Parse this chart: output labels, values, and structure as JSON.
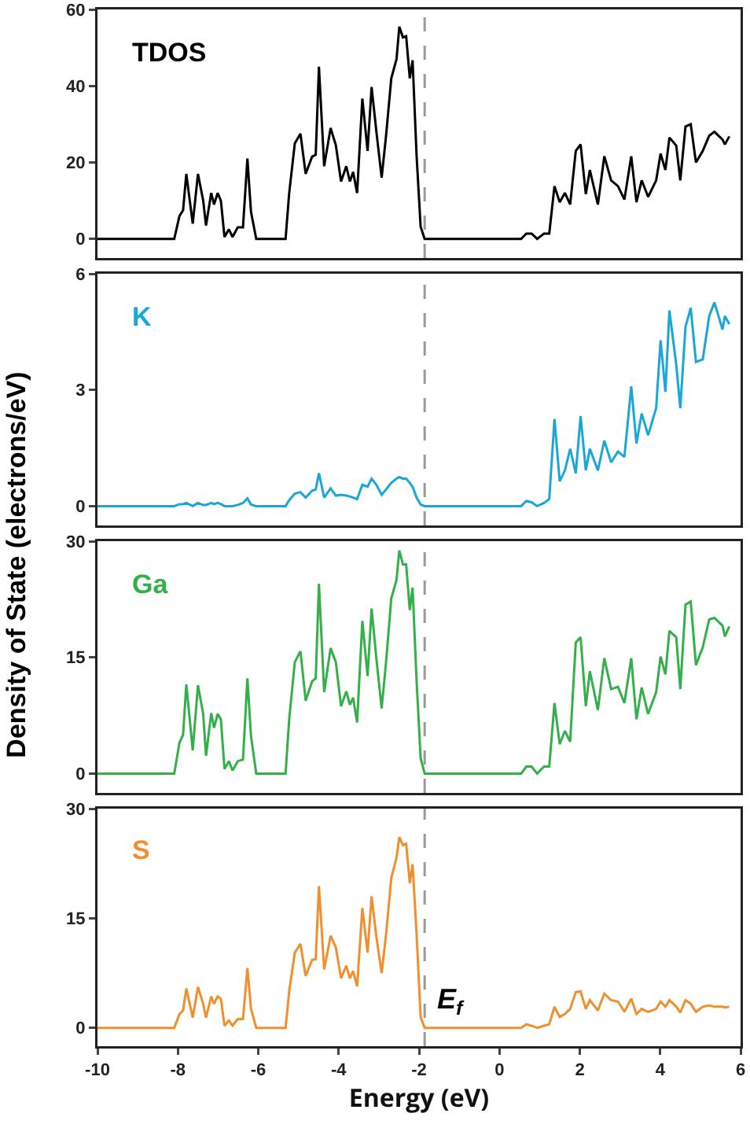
{
  "chart_data": [
    {
      "type": "line",
      "ylabel": "Density of State (electrons/eV)",
      "tick_labels": "y",
      "grid": false,
      "legend": false,
      "x": [
        -10,
        -8.09,
        -7.96,
        -7.87,
        -7.79,
        -7.63,
        -7.5,
        -7.37,
        -7.3,
        -7.17,
        -7.1,
        -7.01,
        -6.93,
        -6.84,
        -6.73,
        -6.64,
        -6.51,
        -6.38,
        -6.27,
        -6.18,
        -6.05,
        -5.32,
        -5.23,
        -5.09,
        -4.95,
        -4.82,
        -4.66,
        -4.57,
        -4.49,
        -4.36,
        -4.2,
        -4.07,
        -3.94,
        -3.81,
        -3.72,
        -3.64,
        -3.54,
        -3.41,
        -3.28,
        -3.18,
        -3.06,
        -2.93,
        -2.82,
        -2.69,
        -2.56,
        -2.49,
        -2.4,
        -2.32,
        -2.23,
        -2.16,
        -2.06,
        -1.96,
        -1.86,
        0.54,
        0.67,
        0.8,
        0.94,
        1.11,
        1.24,
        1.37,
        1.5,
        1.63,
        1.76,
        1.9,
        2.02,
        2.15,
        2.25,
        2.45,
        2.61,
        2.78,
        2.95,
        3.11,
        3.28,
        3.41,
        3.54,
        3.7,
        3.9,
        4.01,
        4.13,
        4.23,
        4.4,
        4.5,
        4.63,
        4.76,
        4.89,
        5.06,
        5.22,
        5.35,
        5.55,
        5.61,
        5.72
      ],
      "series": [
        {
          "name": "TDOS",
          "color": "#000000",
          "values": [
            0,
            0,
            6,
            7.5,
            17,
            4,
            17,
            10,
            3.5,
            12,
            9,
            12,
            10,
            0.5,
            2.5,
            0.5,
            3,
            3,
            21,
            7,
            0,
            0,
            12,
            25,
            27.5,
            17,
            21.5,
            22,
            45,
            19,
            29,
            24.5,
            15,
            19,
            15,
            17.5,
            12,
            36.7,
            23,
            39.7,
            28,
            16,
            27,
            42,
            47,
            55.5,
            52.7,
            53,
            42,
            46.7,
            21.6,
            3.2,
            0,
            0,
            1.4,
            1.4,
            0,
            1.4,
            1.4,
            13.8,
            9.6,
            12,
            9,
            23,
            24.7,
            11.7,
            18,
            9,
            21.6,
            15.3,
            13.8,
            10.3,
            21.6,
            9.6,
            15.3,
            11,
            15.3,
            22.3,
            18,
            26.5,
            24.4,
            15.3,
            29.4,
            30,
            20,
            23,
            27,
            28,
            26,
            24.7,
            26.8
          ]
        }
      ],
      "xlim": [
        -10,
        6
      ],
      "ylim": [
        -5,
        60
      ],
      "yticks": [
        0,
        20,
        40,
        60
      ],
      "ref_lines": [
        {
          "axis": "x",
          "value": -1.86,
          "color": "#999999",
          "line_style": "dashed"
        }
      ]
    },
    {
      "type": "line",
      "tick_labels": "y",
      "grid": false,
      "legend": false,
      "x": [
        -10,
        -8.09,
        -7.96,
        -7.87,
        -7.79,
        -7.63,
        -7.5,
        -7.37,
        -7.3,
        -7.17,
        -7.1,
        -7.01,
        -6.93,
        -6.84,
        -6.73,
        -6.64,
        -6.51,
        -6.38,
        -6.27,
        -6.18,
        -6.05,
        -5.32,
        -5.23,
        -5.09,
        -4.95,
        -4.82,
        -4.66,
        -4.57,
        -4.49,
        -4.36,
        -4.2,
        -4.07,
        -3.94,
        -3.81,
        -3.72,
        -3.64,
        -3.54,
        -3.41,
        -3.28,
        -3.18,
        -3.06,
        -2.93,
        -2.82,
        -2.69,
        -2.56,
        -2.49,
        -2.4,
        -2.32,
        -2.23,
        -2.16,
        -2.06,
        -1.96,
        -1.86,
        0.54,
        0.67,
        0.8,
        0.94,
        1.11,
        1.24,
        1.37,
        1.5,
        1.63,
        1.76,
        1.9,
        2.02,
        2.15,
        2.25,
        2.45,
        2.61,
        2.78,
        2.95,
        3.11,
        3.28,
        3.41,
        3.54,
        3.7,
        3.9,
        4.01,
        4.13,
        4.23,
        4.4,
        4.5,
        4.63,
        4.76,
        4.89,
        5.06,
        5.22,
        5.35,
        5.55,
        5.61,
        5.72
      ],
      "series": [
        {
          "name": "K",
          "color": "#1aa7d8",
          "values": [
            0,
            0,
            0.05,
            0.05,
            0.08,
            0,
            0.08,
            0.03,
            0.03,
            0.08,
            0.05,
            0.08,
            0.05,
            0,
            0,
            0,
            0.03,
            0.08,
            0.2,
            0.04,
            0,
            0,
            0.15,
            0.32,
            0.36,
            0.22,
            0.4,
            0.43,
            0.85,
            0.22,
            0.46,
            0.27,
            0.29,
            0.27,
            0.25,
            0.22,
            0.18,
            0.55,
            0.5,
            0.71,
            0.55,
            0.29,
            0.43,
            0.6,
            0.71,
            0.75,
            0.71,
            0.71,
            0.6,
            0.5,
            0.22,
            0.04,
            0,
            0,
            0.13,
            0.1,
            0,
            0.08,
            0.18,
            2.25,
            0.64,
            0.92,
            1.48,
            0.85,
            2.32,
            0.92,
            1.48,
            0.92,
            1.69,
            1.13,
            1.41,
            1.27,
            3.09,
            1.62,
            2.39,
            1.83,
            2.53,
            4.28,
            2.95,
            5.05,
            3.65,
            2.53,
            4.63,
            5.12,
            3.72,
            3.79,
            4.91,
            5.26,
            4.56,
            4.91,
            4.7
          ]
        }
      ],
      "xlim": [
        -10,
        6
      ],
      "ylim": [
        -0.5,
        6
      ],
      "yticks": [
        0,
        3,
        6
      ],
      "ref_lines": [
        {
          "axis": "x",
          "value": -1.86,
          "color": "#999999",
          "line_style": "dashed"
        }
      ]
    },
    {
      "type": "line",
      "tick_labels": "y",
      "grid": false,
      "legend": false,
      "x": [
        -10,
        -8.09,
        -7.96,
        -7.87,
        -7.79,
        -7.63,
        -7.5,
        -7.37,
        -7.3,
        -7.17,
        -7.1,
        -7.01,
        -6.93,
        -6.84,
        -6.73,
        -6.64,
        -6.51,
        -6.38,
        -6.27,
        -6.18,
        -6.05,
        -5.32,
        -5.23,
        -5.09,
        -4.95,
        -4.82,
        -4.66,
        -4.57,
        -4.49,
        -4.36,
        -4.2,
        -4.07,
        -3.94,
        -3.81,
        -3.72,
        -3.64,
        -3.54,
        -3.41,
        -3.28,
        -3.18,
        -3.06,
        -2.93,
        -2.82,
        -2.69,
        -2.56,
        -2.49,
        -2.4,
        -2.32,
        -2.23,
        -2.16,
        -2.06,
        -1.96,
        -1.86,
        0.54,
        0.67,
        0.8,
        0.94,
        1.11,
        1.24,
        1.37,
        1.5,
        1.63,
        1.76,
        1.9,
        2.02,
        2.15,
        2.25,
        2.45,
        2.61,
        2.78,
        2.95,
        3.11,
        3.28,
        3.41,
        3.54,
        3.7,
        3.9,
        4.01,
        4.13,
        4.23,
        4.4,
        4.5,
        4.63,
        4.76,
        4.89,
        5.06,
        5.22,
        5.35,
        5.55,
        5.61,
        5.72
      ],
      "series": [
        {
          "name": "Ga",
          "color": "#33b04a",
          "values": [
            0,
            0,
            4,
            5,
            11.5,
            3,
            11.4,
            7.7,
            2.3,
            7.8,
            5.9,
            7.7,
            7,
            0.6,
            1.6,
            0.4,
            1.6,
            1.8,
            12.3,
            4.8,
            0,
            0,
            7,
            14.4,
            15.8,
            9.4,
            11.9,
            12.3,
            24.5,
            10.5,
            16.2,
            14.4,
            8.7,
            10.6,
            8.9,
            9.8,
            6.6,
            19.7,
            12.6,
            21.3,
            14.8,
            8.4,
            14.4,
            22.6,
            25,
            28.8,
            27,
            27,
            21.1,
            24,
            11.9,
            2,
            0,
            0,
            0.9,
            0.9,
            0,
            0.9,
            0.9,
            9.1,
            3.8,
            5.5,
            4.1,
            16.9,
            17.6,
            8.7,
            13.2,
            8.2,
            14.9,
            10.9,
            11.2,
            9.1,
            14.9,
            7,
            11.1,
            7.7,
            10.5,
            15.1,
            12.8,
            18.4,
            17.6,
            10.9,
            21.8,
            22.2,
            14,
            16.3,
            19.9,
            20.1,
            19.1,
            17.7,
            19
          ]
        }
      ],
      "xlim": [
        -10,
        6
      ],
      "ylim": [
        -2.5,
        30
      ],
      "yticks": [
        0,
        15,
        30
      ],
      "ref_lines": [
        {
          "axis": "x",
          "value": -1.86,
          "color": "#999999",
          "line_style": "dashed"
        }
      ]
    },
    {
      "type": "line",
      "xlabel": "Energy (eV)",
      "grid": false,
      "legend": false,
      "x": [
        -10,
        -8.09,
        -7.96,
        -7.87,
        -7.79,
        -7.63,
        -7.5,
        -7.37,
        -7.3,
        -7.17,
        -7.1,
        -7.01,
        -6.93,
        -6.84,
        -6.73,
        -6.64,
        -6.51,
        -6.38,
        -6.27,
        -6.18,
        -6.05,
        -5.32,
        -5.23,
        -5.09,
        -4.95,
        -4.82,
        -4.66,
        -4.57,
        -4.49,
        -4.36,
        -4.2,
        -4.07,
        -3.94,
        -3.81,
        -3.72,
        -3.64,
        -3.54,
        -3.41,
        -3.28,
        -3.18,
        -3.06,
        -2.93,
        -2.82,
        -2.69,
        -2.56,
        -2.49,
        -2.4,
        -2.32,
        -2.23,
        -2.16,
        -2.06,
        -1.96,
        -1.86,
        0.54,
        0.67,
        0.8,
        0.94,
        1.11,
        1.24,
        1.37,
        1.5,
        1.63,
        1.76,
        1.9,
        2.02,
        2.15,
        2.25,
        2.45,
        2.61,
        2.78,
        2.95,
        3.11,
        3.28,
        3.41,
        3.54,
        3.7,
        3.9,
        4.01,
        4.13,
        4.23,
        4.4,
        4.5,
        4.63,
        4.76,
        4.89,
        5.06,
        5.22,
        5.35,
        5.55,
        5.61,
        5.72
      ],
      "series": [
        {
          "name": "S",
          "color": "#ef8f2e",
          "values": [
            0,
            0,
            1.9,
            2.4,
            5.4,
            1.4,
            5.6,
            3.3,
            1.4,
            4.3,
            3.3,
            4.3,
            4,
            0.3,
            1,
            0.3,
            1.2,
            1.2,
            8.2,
            2.6,
            0,
            0,
            5,
            10.3,
            11.5,
            7.1,
            9.3,
            9.4,
            19.4,
            8,
            12.6,
            11,
            6.8,
            8.5,
            6.8,
            7.8,
            5.7,
            16.4,
            10.3,
            18,
            12.4,
            7.5,
            12.8,
            20.5,
            23.3,
            26.1,
            25,
            25.2,
            19.8,
            22.4,
            12.8,
            1.5,
            0,
            0,
            0.5,
            0.3,
            0,
            0.3,
            0.5,
            2.9,
            1.5,
            1.9,
            2.6,
            4.9,
            5,
            2.6,
            3.8,
            2.4,
            4.7,
            3.8,
            3.6,
            2.2,
            4,
            1.9,
            2.6,
            2.2,
            2.6,
            3.6,
            2.9,
            3.8,
            2.9,
            2.1,
            3.8,
            3.3,
            2.2,
            2.9,
            3.1,
            2.9,
            2.9,
            2.8,
            2.9
          ]
        }
      ],
      "xlim": [
        -10,
        6
      ],
      "xticks": [
        -10,
        -8,
        -6,
        -4,
        -2,
        0,
        2,
        4,
        6
      ],
      "ylim": [
        -2.5,
        30
      ],
      "yticks": [
        0,
        15,
        30
      ],
      "ref_lines": [
        {
          "axis": "x",
          "value": -1.86,
          "color": "#999999",
          "line_style": "dashed",
          "label": "E$_{f}$"
        }
      ]
    }
  ]
}
